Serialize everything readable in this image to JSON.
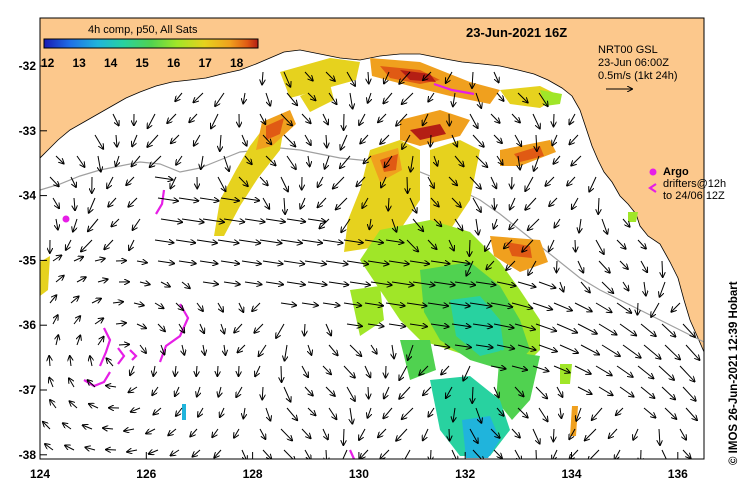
{
  "map": {
    "title": "23-Jun-2021 16Z",
    "colorbar": {
      "label": "4h comp, p50, All Sats",
      "ticks": [
        "12",
        "13",
        "14",
        "15",
        "16",
        "17",
        "18"
      ],
      "colors": [
        "#1a1ab4",
        "#1e6ee6",
        "#20b4dc",
        "#28d2a0",
        "#50d250",
        "#a0e628",
        "#e6d21e",
        "#f0a01e",
        "#e05a14",
        "#b41e14"
      ]
    },
    "velocity_info": {
      "line1": "NRT00 GSL",
      "line2": "23-Jun 06:00Z",
      "line3": "0.5m/s (1kt 24h)"
    },
    "legend": {
      "argo_label": "Argo",
      "drifters_line1": "drifters@12h",
      "drifters_line2": "to 24/06 12Z"
    },
    "x_axis_ticks": [
      "124",
      "126",
      "128",
      "130",
      "132",
      "134",
      "136"
    ],
    "y_axis_ticks": [
      "-32",
      "-33",
      "-34",
      "-35",
      "-36",
      "-37",
      "-38"
    ],
    "credit": "© IMOS 26-Jun-2021 12:39 Hobart",
    "colors": {
      "land": "#fcc88c",
      "argo": "#e61ee6",
      "contour": "#a0a0a0",
      "frame": "#000000"
    }
  }
}
